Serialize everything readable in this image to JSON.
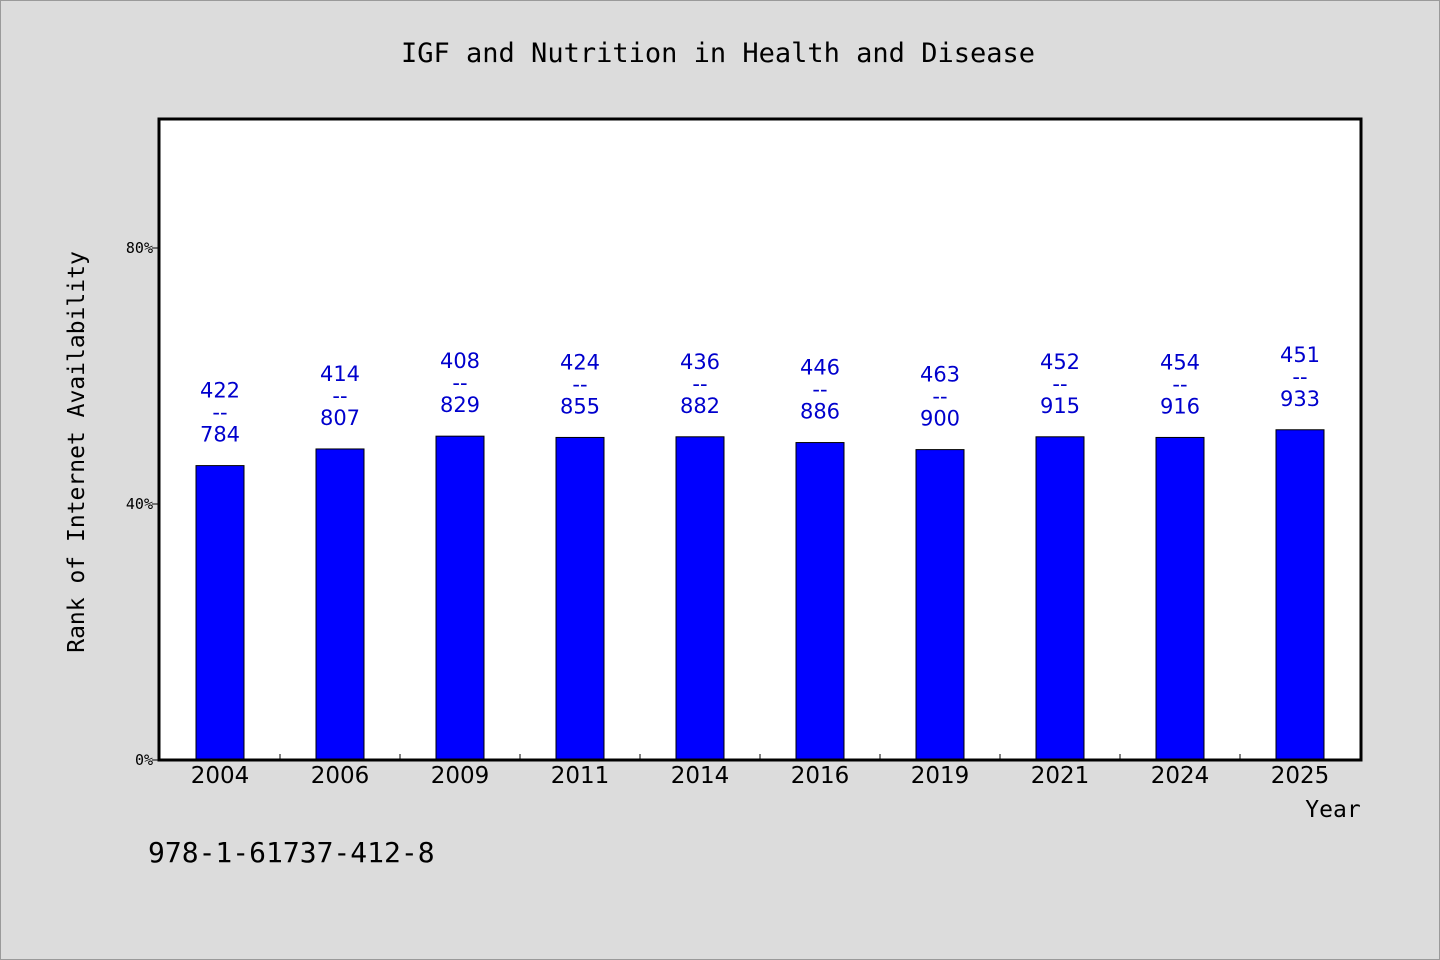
{
  "colors": {
    "background": "#dcdcdc",
    "plot_background": "#ffffff",
    "bar": "#0000ff",
    "label": "#0000cd"
  },
  "isbn": "978-1-61737-412-8",
  "chart_data": {
    "type": "bar",
    "title": "IGF and Nutrition in Health and Disease",
    "xlabel": "Year",
    "ylabel": "Rank of Internet Availability",
    "ylim": [
      0,
      100
    ],
    "yticks": [
      0,
      40,
      80
    ],
    "ytick_labels": [
      "0%",
      "40%",
      "80%"
    ],
    "grid": false,
    "categories": [
      "2004",
      "2006",
      "2009",
      "2011",
      "2014",
      "2016",
      "2019",
      "2021",
      "2024",
      "2025"
    ],
    "values": [
      46.0,
      48.6,
      50.6,
      50.4,
      50.5,
      49.6,
      48.5,
      50.5,
      50.4,
      51.6
    ],
    "labels_top": [
      "422",
      "414",
      "408",
      "424",
      "436",
      "446",
      "463",
      "452",
      "454",
      "451"
    ],
    "labels_sep": "--",
    "labels_bottom": [
      "784",
      "807",
      "829",
      "855",
      "882",
      "886",
      "900",
      "915",
      "916",
      "933"
    ]
  }
}
